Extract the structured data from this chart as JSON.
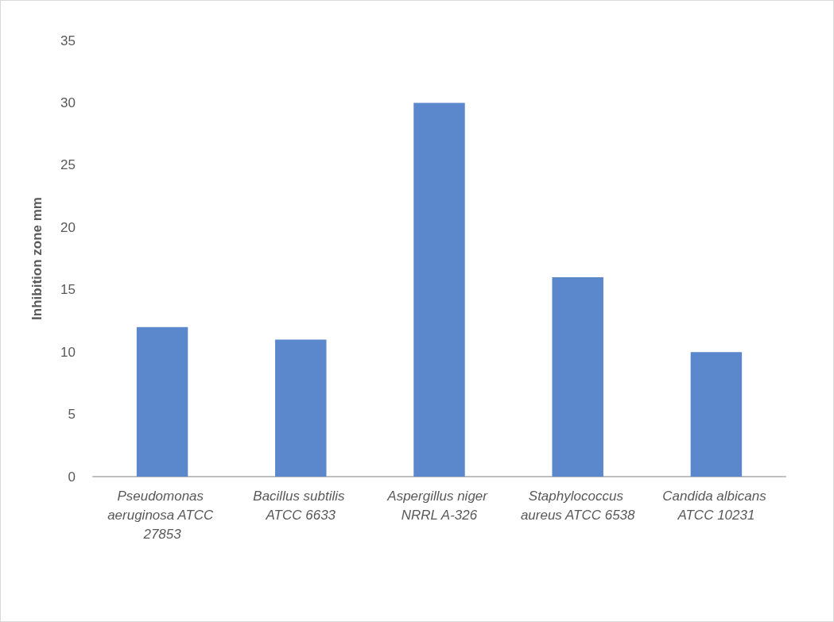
{
  "chart_data": {
    "type": "bar",
    "ylabel": "Inhibition zone mm",
    "categories": [
      "Pseudomonas aeruginosa ATCC 27853",
      "Bacillus subtilis ATCC 6633",
      "Aspergillus niger NRRL A-326",
      "Staphylococcus aureus ATCC 6538",
      "Candida albicans ATCC 10231"
    ],
    "values": [
      12,
      11,
      30,
      16,
      10
    ],
    "color": "#5b87cc",
    "ylim": [
      0,
      35
    ],
    "yticks": [
      0,
      5,
      10,
      15,
      20,
      25,
      30,
      35
    ],
    "grid": false
  }
}
